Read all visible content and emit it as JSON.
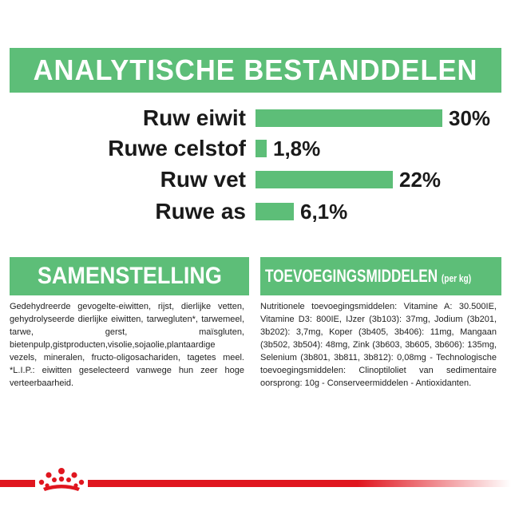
{
  "analytical": {
    "title": "ANALYTISCHE BESTANDDELEN",
    "rows": [
      {
        "label": "Ruw eiwit",
        "value": "30%",
        "percent": 30
      },
      {
        "label": "Ruwe celstof",
        "value": "1,8%",
        "percent": 1.8
      },
      {
        "label": "Ruw vet",
        "value": "22%",
        "percent": 22
      },
      {
        "label": "Ruwe as",
        "value": "6,1%",
        "percent": 6.1
      }
    ]
  },
  "composition": {
    "title": "SAMENSTELLING",
    "text": "Gedehydreerde gevogelte-eiwitten, rijst, dierlijke vetten, gehydrolyseerde dierlijke eiwitten, tarwegluten*, tarwemeel, tarwe, gerst, maïsgluten, bietenpulp,gistproducten,visolie,sojaolie,plantaardige vezels, mineralen, fructo-oligosachariden, tagetes meel. *L.I.P.: eiwitten geselecteerd vanwege hun zeer hoge verteerbaarheid."
  },
  "additives": {
    "title": "TOEVOEGINGSMIDDELEN",
    "title_suffix": "(per kg)",
    "text": "Nutritionele toevoegingsmiddelen: Vitamine A: 30.500IE, Vitamine D3: 800IE, IJzer (3b103): 37mg, Jodium (3b201, 3b202): 3,7mg, Koper (3b405, 3b406): 11mg, Mangaan (3b502, 3b504): 48mg, Zink (3b603, 3b605, 3b606): 135mg, Selenium (3b801, 3b811, 3b812): 0,08mg - Technologische toevoegingsmiddelen: Clinoptiloliet van sedimentaire oorsprong: 10g - Conserveermiddelen - Antioxidanten."
  },
  "colors": {
    "accent_green": "#5dbe78",
    "brand_red": "#e0161f"
  },
  "footer": {
    "logo_icon": "crown-icon"
  }
}
